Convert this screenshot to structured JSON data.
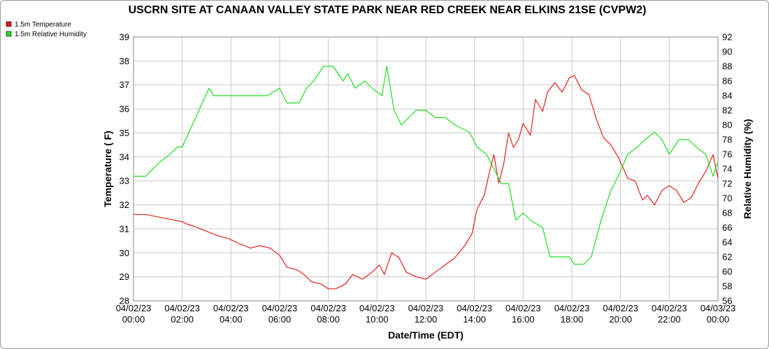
{
  "chart_data": {
    "type": "line",
    "title": "USCRN SITE AT CANAAN VALLEY STATE PARK NEAR RED CREEK NEAR ELKINS 21SE (CVPW2)",
    "xlabel": "Date/Time (EDT)",
    "ylabel": "Temperature ( F)",
    "y2label": "Relative Humidity (%)",
    "x_ticks": [
      {
        "hour": 0,
        "date": "04/02/23",
        "time": "00:00"
      },
      {
        "hour": 2,
        "date": "04/02/23",
        "time": "02:00"
      },
      {
        "hour": 4,
        "date": "04/02/23",
        "time": "04:00"
      },
      {
        "hour": 6,
        "date": "04/02/23",
        "time": "06:00"
      },
      {
        "hour": 8,
        "date": "04/02/23",
        "time": "08:00"
      },
      {
        "hour": 10,
        "date": "04/02/23",
        "time": "10:00"
      },
      {
        "hour": 12,
        "date": "04/02/23",
        "time": "12:00"
      },
      {
        "hour": 14,
        "date": "04/02/23",
        "time": "14:00"
      },
      {
        "hour": 16,
        "date": "04/02/23",
        "time": "16:00"
      },
      {
        "hour": 18,
        "date": "04/02/23",
        "time": "18:00"
      },
      {
        "hour": 20,
        "date": "04/02/23",
        "time": "20:00"
      },
      {
        "hour": 22,
        "date": "04/02/23",
        "time": "22:00"
      },
      {
        "hour": 24,
        "date": "04/03/23",
        "time": "00:00"
      }
    ],
    "xlim": [
      0,
      24
    ],
    "ylim": [
      28,
      39
    ],
    "y_ticks": [
      28,
      29,
      30,
      31,
      32,
      33,
      34,
      35,
      36,
      37,
      38,
      39
    ],
    "y2lim": [
      56,
      92
    ],
    "y2_ticks": [
      56,
      58,
      60,
      62,
      64,
      66,
      68,
      70,
      72,
      74,
      76,
      78,
      80,
      82,
      84,
      86,
      88,
      90,
      92
    ],
    "grid": true,
    "legend_position": "top-left outside plot",
    "series": [
      {
        "name": "1.5m Temperature",
        "color": "#e02020",
        "axis": "left",
        "points": [
          [
            0.0,
            31.6
          ],
          [
            0.5,
            31.6
          ],
          [
            1.0,
            31.5
          ],
          [
            1.5,
            31.4
          ],
          [
            2.0,
            31.3
          ],
          [
            2.2,
            31.2
          ],
          [
            2.5,
            31.1
          ],
          [
            3.0,
            30.9
          ],
          [
            3.5,
            30.7
          ],
          [
            3.9,
            30.6
          ],
          [
            4.3,
            30.4
          ],
          [
            4.8,
            30.2
          ],
          [
            5.2,
            30.3
          ],
          [
            5.6,
            30.2
          ],
          [
            6.0,
            29.9
          ],
          [
            6.3,
            29.4
          ],
          [
            6.7,
            29.3
          ],
          [
            7.0,
            29.1
          ],
          [
            7.3,
            28.8
          ],
          [
            7.7,
            28.7
          ],
          [
            8.0,
            28.5
          ],
          [
            8.3,
            28.5
          ],
          [
            8.7,
            28.7
          ],
          [
            9.0,
            29.1
          ],
          [
            9.4,
            28.9
          ],
          [
            9.8,
            29.2
          ],
          [
            10.1,
            29.5
          ],
          [
            10.3,
            29.1
          ],
          [
            10.6,
            30.0
          ],
          [
            10.9,
            29.8
          ],
          [
            11.2,
            29.2
          ],
          [
            11.6,
            29.0
          ],
          [
            12.0,
            28.9
          ],
          [
            12.4,
            29.2
          ],
          [
            12.8,
            29.5
          ],
          [
            13.2,
            29.8
          ],
          [
            13.6,
            30.3
          ],
          [
            13.9,
            30.8
          ],
          [
            14.1,
            31.8
          ],
          [
            14.4,
            32.4
          ],
          [
            14.6,
            33.3
          ],
          [
            14.8,
            34.1
          ],
          [
            15.0,
            32.9
          ],
          [
            15.2,
            33.7
          ],
          [
            15.4,
            35.0
          ],
          [
            15.6,
            34.4
          ],
          [
            15.8,
            34.7
          ],
          [
            16.0,
            35.4
          ],
          [
            16.3,
            34.9
          ],
          [
            16.5,
            36.4
          ],
          [
            16.8,
            35.9
          ],
          [
            17.0,
            36.7
          ],
          [
            17.3,
            37.1
          ],
          [
            17.6,
            36.7
          ],
          [
            17.9,
            37.3
          ],
          [
            18.1,
            37.4
          ],
          [
            18.4,
            36.8
          ],
          [
            18.7,
            36.6
          ],
          [
            19.0,
            35.6
          ],
          [
            19.3,
            34.8
          ],
          [
            19.6,
            34.5
          ],
          [
            19.9,
            34.0
          ],
          [
            20.3,
            33.1
          ],
          [
            20.6,
            33.0
          ],
          [
            20.9,
            32.2
          ],
          [
            21.1,
            32.4
          ],
          [
            21.4,
            32.0
          ],
          [
            21.7,
            32.6
          ],
          [
            22.0,
            32.8
          ],
          [
            22.3,
            32.6
          ],
          [
            22.6,
            32.1
          ],
          [
            22.9,
            32.3
          ],
          [
            23.2,
            32.9
          ],
          [
            23.5,
            33.4
          ],
          [
            23.8,
            34.1
          ],
          [
            24.0,
            33.1
          ]
        ]
      },
      {
        "name": "1.5m Relative Humidity",
        "color": "#20dd20",
        "axis": "right",
        "points": [
          [
            0.0,
            73
          ],
          [
            0.5,
            73
          ],
          [
            0.8,
            74
          ],
          [
            1.1,
            75
          ],
          [
            1.5,
            76
          ],
          [
            1.8,
            77
          ],
          [
            2.0,
            77
          ],
          [
            3.1,
            85
          ],
          [
            3.3,
            84
          ],
          [
            3.7,
            84
          ],
          [
            4.3,
            84
          ],
          [
            4.8,
            84
          ],
          [
            5.5,
            84
          ],
          [
            6.0,
            85
          ],
          [
            6.3,
            83
          ],
          [
            6.8,
            83
          ],
          [
            7.1,
            85
          ],
          [
            7.4,
            86
          ],
          [
            7.8,
            88
          ],
          [
            8.2,
            88
          ],
          [
            8.6,
            86
          ],
          [
            8.8,
            87
          ],
          [
            9.1,
            85
          ],
          [
            9.5,
            86
          ],
          [
            9.8,
            85
          ],
          [
            10.2,
            84
          ],
          [
            10.4,
            88
          ],
          [
            10.7,
            82
          ],
          [
            11.0,
            80
          ],
          [
            11.3,
            81
          ],
          [
            11.6,
            82
          ],
          [
            12.0,
            82
          ],
          [
            12.4,
            81
          ],
          [
            12.8,
            81
          ],
          [
            13.2,
            80
          ],
          [
            13.8,
            79
          ],
          [
            14.1,
            77
          ],
          [
            14.5,
            76
          ],
          [
            14.8,
            74
          ],
          [
            15.1,
            72
          ],
          [
            15.4,
            72
          ],
          [
            15.7,
            67
          ],
          [
            16.0,
            68
          ],
          [
            16.3,
            67
          ],
          [
            16.8,
            66
          ],
          [
            17.1,
            62
          ],
          [
            17.6,
            62
          ],
          [
            17.9,
            62
          ],
          [
            18.1,
            61
          ],
          [
            18.5,
            61
          ],
          [
            18.8,
            62
          ],
          [
            19.2,
            67
          ],
          [
            19.6,
            71
          ],
          [
            19.9,
            73
          ],
          [
            20.3,
            76
          ],
          [
            20.7,
            77
          ],
          [
            21.0,
            78
          ],
          [
            21.4,
            79
          ],
          [
            21.7,
            78
          ],
          [
            22.0,
            76
          ],
          [
            22.4,
            78
          ],
          [
            22.8,
            78
          ],
          [
            23.1,
            77
          ],
          [
            23.5,
            76
          ],
          [
            23.8,
            73
          ],
          [
            24.0,
            75
          ]
        ]
      }
    ]
  }
}
